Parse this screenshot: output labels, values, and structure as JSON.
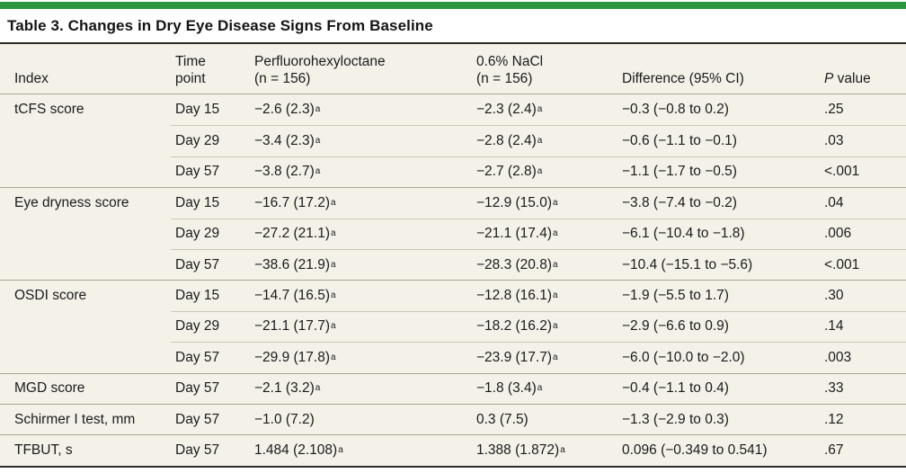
{
  "accent": {
    "bar_color": "#2d9740"
  },
  "table": {
    "title": "Table 3. Changes in Dry Eye Disease Signs From Baseline",
    "header": {
      "index": {
        "l1": "",
        "l2": "Index"
      },
      "time": {
        "l1": "Time",
        "l2": "point"
      },
      "pfho": {
        "l1": "Perfluorohexyloctane",
        "l2": "(n = 156)"
      },
      "nacl": {
        "l1": "0.6% NaCl",
        "l2": "(n = 156)"
      },
      "diff": {
        "l1": "",
        "l2": "Difference (95% CI)"
      },
      "pvalue": {
        "italic": "P",
        "rest": "value"
      }
    },
    "footnote_marker": "a",
    "rows": [
      {
        "index": "tCFS score",
        "time": "Day 15",
        "pfho": {
          "v": "−2.6 (2.3)",
          "s": "a"
        },
        "nacl": {
          "v": "−2.3 (2.4)",
          "s": "a"
        },
        "diff": "−0.3 (−0.8 to 0.2)",
        "p": ".25"
      },
      {
        "index": "",
        "time": "Day 29",
        "pfho": {
          "v": "−3.4 (2.3)",
          "s": "a"
        },
        "nacl": {
          "v": "−2.8 (2.4)",
          "s": "a"
        },
        "diff": "−0.6 (−1.1 to −0.1)",
        "p": ".03"
      },
      {
        "index": "",
        "time": "Day 57",
        "pfho": {
          "v": "−3.8 (2.7)",
          "s": "a"
        },
        "nacl": {
          "v": "−2.7 (2.8)",
          "s": "a"
        },
        "diff": "−1.1 (−1.7 to −0.5)",
        "p": "<.001"
      },
      {
        "index": "Eye dryness score",
        "time": "Day 15",
        "pfho": {
          "v": "−16.7 (17.2)",
          "s": "a"
        },
        "nacl": {
          "v": "−12.9 (15.0)",
          "s": "a"
        },
        "diff": "−3.8 (−7.4 to −0.2)",
        "p": ".04"
      },
      {
        "index": "",
        "time": "Day 29",
        "pfho": {
          "v": "−27.2 (21.1)",
          "s": "a"
        },
        "nacl": {
          "v": "−21.1 (17.4)",
          "s": "a"
        },
        "diff": "−6.1 (−10.4 to −1.8)",
        "p": ".006"
      },
      {
        "index": "",
        "time": "Day 57",
        "pfho": {
          "v": "−38.6 (21.9)",
          "s": "a"
        },
        "nacl": {
          "v": "−28.3 (20.8)",
          "s": "a"
        },
        "diff": "−10.4 (−15.1 to −5.6)",
        "p": "<.001"
      },
      {
        "index": "OSDI score",
        "time": "Day 15",
        "pfho": {
          "v": "−14.7 (16.5)",
          "s": "a"
        },
        "nacl": {
          "v": "−12.8 (16.1)",
          "s": "a"
        },
        "diff": "−1.9 (−5.5 to 1.7)",
        "p": ".30"
      },
      {
        "index": "",
        "time": "Day 29",
        "pfho": {
          "v": "−21.1 (17.7)",
          "s": "a"
        },
        "nacl": {
          "v": "−18.2 (16.2)",
          "s": "a"
        },
        "diff": "−2.9 (−6.6 to 0.9)",
        "p": ".14"
      },
      {
        "index": "",
        "time": "Day 57",
        "pfho": {
          "v": "−29.9 (17.8)",
          "s": "a"
        },
        "nacl": {
          "v": "−23.9 (17.7)",
          "s": "a"
        },
        "diff": "−6.0 (−10.0 to −2.0)",
        "p": ".003"
      },
      {
        "index": "MGD score",
        "time": "Day 57",
        "pfho": {
          "v": "−2.1 (3.2)",
          "s": "a"
        },
        "nacl": {
          "v": "−1.8 (3.4)",
          "s": "a"
        },
        "diff": "−0.4 (−1.1 to 0.4)",
        "p": ".33"
      },
      {
        "index": "Schirmer I test, mm",
        "time": "Day 57",
        "pfho": {
          "v": "−1.0 (7.2)",
          "s": ""
        },
        "nacl": {
          "v": "0.3 (7.5)",
          "s": ""
        },
        "diff": "−1.3 (−2.9 to 0.3)",
        "p": ".12"
      },
      {
        "index": "TFBUT, s",
        "time": "Day 57",
        "pfho": {
          "v": "1.484 (2.108)",
          "s": "a"
        },
        "nacl": {
          "v": "1.388 (1.872)",
          "s": "a"
        },
        "diff": "0.096 (−0.349 to 0.541)",
        "p": ".67"
      }
    ]
  }
}
